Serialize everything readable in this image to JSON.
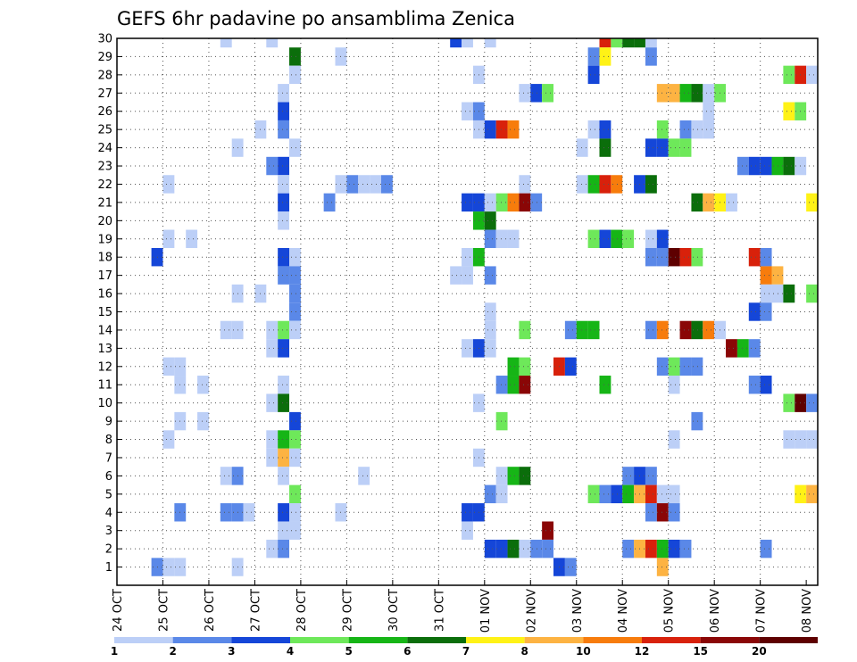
{
  "chart_data": {
    "type": "heatmap",
    "title": "GEFS 6hr padavine po ansamblima Zenica",
    "xlabel": "",
    "ylabel": "",
    "y_ticks": [
      "1",
      "2",
      "3",
      "4",
      "5",
      "6",
      "7",
      "8",
      "9",
      "10",
      "11",
      "12",
      "13",
      "14",
      "15",
      "16",
      "17",
      "18",
      "19",
      "20",
      "21",
      "22",
      "23",
      "24",
      "25",
      "26",
      "27",
      "28",
      "29",
      "30"
    ],
    "x_ticks": [
      "24 OCT",
      "25 OCT",
      "26 OCT",
      "27 OCT",
      "28 OCT",
      "29 OCT",
      "30 OCT",
      "31 OCT",
      "01 NOV",
      "02 NOV",
      "03 NOV",
      "04 NOV",
      "05 NOV",
      "06 NOV",
      "07 NOV",
      "08 NOV"
    ],
    "x_range_steps": [
      0,
      61
    ],
    "steps_per_day": 4,
    "ylim": [
      0,
      30
    ],
    "grid": true,
    "colorbar": {
      "colors": [
        "#bccff7",
        "#5a88e8",
        "#1546d8",
        "#6ee85a",
        "#16b516",
        "#0b6e0b",
        "#fff216",
        "#fdb342",
        "#f77c0c",
        "#d8210b",
        "#8a0606",
        "#5e0000"
      ],
      "labels": [
        "1",
        "2",
        "3",
        "4",
        "5",
        "6",
        "7",
        "8",
        "10",
        "12",
        "15",
        "20"
      ]
    },
    "cells": [
      [
        30,
        9,
        1
      ],
      [
        30,
        13,
        1
      ],
      [
        30,
        29,
        3
      ],
      [
        30,
        30,
        1
      ],
      [
        30,
        32,
        1
      ],
      [
        30,
        42,
        10
      ],
      [
        30,
        43,
        4
      ],
      [
        30,
        44,
        6
      ],
      [
        30,
        45,
        6
      ],
      [
        30,
        46,
        1
      ],
      [
        29,
        15,
        6
      ],
      [
        29,
        19,
        1
      ],
      [
        29,
        41,
        2
      ],
      [
        29,
        42,
        7
      ],
      [
        29,
        46,
        2
      ],
      [
        28,
        15,
        1
      ],
      [
        28,
        31,
        1
      ],
      [
        28,
        41,
        3
      ],
      [
        28,
        58,
        4
      ],
      [
        28,
        59,
        10
      ],
      [
        28,
        60,
        1
      ],
      [
        27,
        14,
        1
      ],
      [
        27,
        35,
        1
      ],
      [
        27,
        36,
        3
      ],
      [
        27,
        37,
        4
      ],
      [
        27,
        47,
        8
      ],
      [
        27,
        48,
        8
      ],
      [
        27,
        49,
        5
      ],
      [
        27,
        50,
        6
      ],
      [
        27,
        51,
        1
      ],
      [
        27,
        52,
        4
      ],
      [
        26,
        14,
        3
      ],
      [
        26,
        30,
        1
      ],
      [
        26,
        31,
        2
      ],
      [
        26,
        51,
        1
      ],
      [
        26,
        58,
        7
      ],
      [
        26,
        59,
        4
      ],
      [
        25,
        12,
        1
      ],
      [
        25,
        14,
        2
      ],
      [
        25,
        31,
        1
      ],
      [
        25,
        32,
        3
      ],
      [
        25,
        33,
        10
      ],
      [
        25,
        34,
        9
      ],
      [
        25,
        41,
        1
      ],
      [
        25,
        42,
        3
      ],
      [
        25,
        47,
        4
      ],
      [
        25,
        49,
        2
      ],
      [
        25,
        50,
        1
      ],
      [
        25,
        51,
        1
      ],
      [
        24,
        10,
        1
      ],
      [
        24,
        15,
        1
      ],
      [
        24,
        40,
        1
      ],
      [
        24,
        42,
        6
      ],
      [
        24,
        46,
        3
      ],
      [
        24,
        47,
        3
      ],
      [
        24,
        48,
        4
      ],
      [
        24,
        49,
        4
      ],
      [
        23,
        13,
        2
      ],
      [
        23,
        14,
        3
      ],
      [
        23,
        54,
        2
      ],
      [
        23,
        55,
        3
      ],
      [
        23,
        56,
        3
      ],
      [
        23,
        57,
        5
      ],
      [
        23,
        58,
        6
      ],
      [
        23,
        59,
        1
      ],
      [
        22,
        4,
        1
      ],
      [
        22,
        14,
        1
      ],
      [
        22,
        19,
        1
      ],
      [
        22,
        20,
        2
      ],
      [
        22,
        21,
        1
      ],
      [
        22,
        22,
        1
      ],
      [
        22,
        23,
        2
      ],
      [
        22,
        35,
        1
      ],
      [
        22,
        40,
        1
      ],
      [
        22,
        41,
        5
      ],
      [
        22,
        42,
        10
      ],
      [
        22,
        43,
        9
      ],
      [
        22,
        45,
        3
      ],
      [
        22,
        46,
        6
      ],
      [
        21,
        14,
        3
      ],
      [
        21,
        18,
        2
      ],
      [
        21,
        30,
        3
      ],
      [
        21,
        31,
        3
      ],
      [
        21,
        32,
        1
      ],
      [
        21,
        33,
        4
      ],
      [
        21,
        34,
        9
      ],
      [
        21,
        35,
        11
      ],
      [
        21,
        36,
        2
      ],
      [
        21,
        50,
        6
      ],
      [
        21,
        51,
        8
      ],
      [
        21,
        52,
        7
      ],
      [
        21,
        53,
        1
      ],
      [
        21,
        60,
        7
      ],
      [
        20,
        14,
        1
      ],
      [
        20,
        31,
        5
      ],
      [
        20,
        32,
        6
      ],
      [
        19,
        4,
        1
      ],
      [
        19,
        6,
        1
      ],
      [
        19,
        32,
        2
      ],
      [
        19,
        33,
        1
      ],
      [
        19,
        34,
        1
      ],
      [
        19,
        41,
        4
      ],
      [
        19,
        42,
        3
      ],
      [
        19,
        43,
        5
      ],
      [
        19,
        44,
        4
      ],
      [
        19,
        46,
        1
      ],
      [
        19,
        47,
        3
      ],
      [
        18,
        3,
        3
      ],
      [
        18,
        14,
        3
      ],
      [
        18,
        15,
        1
      ],
      [
        18,
        30,
        1
      ],
      [
        18,
        31,
        5
      ],
      [
        18,
        46,
        2
      ],
      [
        18,
        47,
        2
      ],
      [
        18,
        48,
        12
      ],
      [
        18,
        49,
        10
      ],
      [
        18,
        50,
        4
      ],
      [
        18,
        55,
        10
      ],
      [
        18,
        56,
        2
      ],
      [
        17,
        14,
        2
      ],
      [
        17,
        15,
        2
      ],
      [
        17,
        29,
        1
      ],
      [
        17,
        30,
        1
      ],
      [
        17,
        32,
        2
      ],
      [
        17,
        56,
        9
      ],
      [
        17,
        57,
        8
      ],
      [
        16,
        10,
        1
      ],
      [
        16,
        12,
        1
      ],
      [
        16,
        15,
        2
      ],
      [
        16,
        56,
        1
      ],
      [
        16,
        57,
        1
      ],
      [
        16,
        58,
        6
      ],
      [
        16,
        60,
        4
      ],
      [
        15,
        15,
        2
      ],
      [
        15,
        32,
        1
      ],
      [
        15,
        55,
        3
      ],
      [
        15,
        56,
        2
      ],
      [
        14,
        9,
        1
      ],
      [
        14,
        10,
        1
      ],
      [
        14,
        13,
        1
      ],
      [
        14,
        14,
        4
      ],
      [
        14,
        15,
        1
      ],
      [
        14,
        32,
        1
      ],
      [
        14,
        35,
        4
      ],
      [
        14,
        39,
        2
      ],
      [
        14,
        40,
        5
      ],
      [
        14,
        41,
        5
      ],
      [
        14,
        46,
        2
      ],
      [
        14,
        47,
        9
      ],
      [
        14,
        49,
        11
      ],
      [
        14,
        50,
        6
      ],
      [
        14,
        51,
        9
      ],
      [
        14,
        52,
        1
      ],
      [
        13,
        13,
        1
      ],
      [
        13,
        14,
        3
      ],
      [
        13,
        30,
        1
      ],
      [
        13,
        31,
        3
      ],
      [
        13,
        32,
        1
      ],
      [
        13,
        53,
        11
      ],
      [
        13,
        54,
        5
      ],
      [
        13,
        55,
        2
      ],
      [
        12,
        4,
        1
      ],
      [
        12,
        5,
        1
      ],
      [
        12,
        34,
        5
      ],
      [
        12,
        35,
        4
      ],
      [
        12,
        38,
        10
      ],
      [
        12,
        39,
        3
      ],
      [
        12,
        47,
        2
      ],
      [
        12,
        48,
        4
      ],
      [
        12,
        49,
        2
      ],
      [
        12,
        50,
        2
      ],
      [
        11,
        5,
        1
      ],
      [
        11,
        7,
        1
      ],
      [
        11,
        14,
        1
      ],
      [
        11,
        33,
        2
      ],
      [
        11,
        34,
        5
      ],
      [
        11,
        35,
        11
      ],
      [
        11,
        42,
        5
      ],
      [
        11,
        48,
        1
      ],
      [
        11,
        55,
        2
      ],
      [
        11,
        56,
        3
      ],
      [
        10,
        13,
        1
      ],
      [
        10,
        14,
        6
      ],
      [
        10,
        31,
        1
      ],
      [
        10,
        58,
        4
      ],
      [
        10,
        59,
        12
      ],
      [
        10,
        60,
        2
      ],
      [
        9,
        5,
        1
      ],
      [
        9,
        7,
        1
      ],
      [
        9,
        15,
        3
      ],
      [
        9,
        33,
        4
      ],
      [
        9,
        50,
        2
      ],
      [
        8,
        4,
        1
      ],
      [
        8,
        13,
        1
      ],
      [
        8,
        14,
        5
      ],
      [
        8,
        15,
        4
      ],
      [
        8,
        48,
        1
      ],
      [
        8,
        58,
        1
      ],
      [
        8,
        59,
        1
      ],
      [
        8,
        60,
        1
      ],
      [
        7,
        13,
        1
      ],
      [
        7,
        14,
        8
      ],
      [
        7,
        15,
        1
      ],
      [
        7,
        31,
        1
      ],
      [
        6,
        9,
        1
      ],
      [
        6,
        10,
        2
      ],
      [
        6,
        14,
        1
      ],
      [
        6,
        21,
        1
      ],
      [
        6,
        33,
        1
      ],
      [
        6,
        34,
        5
      ],
      [
        6,
        35,
        6
      ],
      [
        6,
        44,
        2
      ],
      [
        6,
        45,
        3
      ],
      [
        6,
        46,
        2
      ],
      [
        5,
        15,
        4
      ],
      [
        5,
        32,
        2
      ],
      [
        5,
        33,
        1
      ],
      [
        5,
        41,
        4
      ],
      [
        5,
        42,
        2
      ],
      [
        5,
        43,
        3
      ],
      [
        5,
        44,
        5
      ],
      [
        5,
        45,
        8
      ],
      [
        5,
        46,
        10
      ],
      [
        5,
        47,
        1
      ],
      [
        5,
        48,
        1
      ],
      [
        5,
        59,
        7
      ],
      [
        5,
        60,
        8
      ],
      [
        4,
        5,
        2
      ],
      [
        4,
        9,
        2
      ],
      [
        4,
        10,
        2
      ],
      [
        4,
        11,
        1
      ],
      [
        4,
        14,
        3
      ],
      [
        4,
        15,
        1
      ],
      [
        4,
        19,
        1
      ],
      [
        4,
        30,
        3
      ],
      [
        4,
        31,
        3
      ],
      [
        4,
        46,
        2
      ],
      [
        4,
        47,
        11
      ],
      [
        4,
        48,
        2
      ],
      [
        3,
        14,
        1
      ],
      [
        3,
        15,
        1
      ],
      [
        3,
        30,
        1
      ],
      [
        3,
        37,
        11
      ],
      [
        2,
        13,
        1
      ],
      [
        2,
        14,
        2
      ],
      [
        2,
        32,
        3
      ],
      [
        2,
        33,
        3
      ],
      [
        2,
        34,
        6
      ],
      [
        2,
        35,
        1
      ],
      [
        2,
        36,
        2
      ],
      [
        2,
        37,
        2
      ],
      [
        2,
        44,
        2
      ],
      [
        2,
        45,
        8
      ],
      [
        2,
        46,
        10
      ],
      [
        2,
        47,
        5
      ],
      [
        2,
        48,
        3
      ],
      [
        2,
        49,
        2
      ],
      [
        2,
        56,
        2
      ],
      [
        1,
        3,
        2
      ],
      [
        1,
        4,
        1
      ],
      [
        1,
        5,
        1
      ],
      [
        1,
        10,
        1
      ],
      [
        1,
        38,
        3
      ],
      [
        1,
        39,
        2
      ],
      [
        1,
        47,
        8
      ]
    ]
  }
}
